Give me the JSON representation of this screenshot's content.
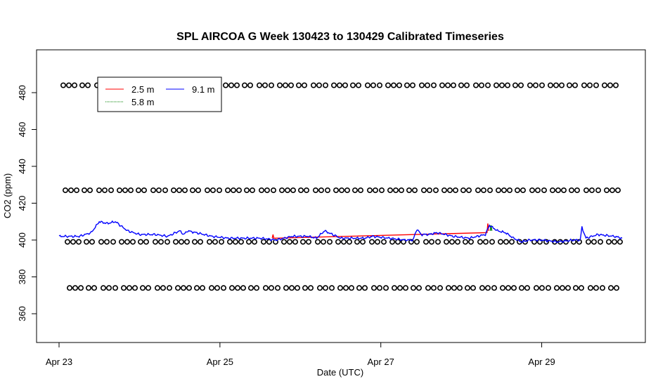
{
  "chart_data": {
    "type": "line",
    "title": "SPL AIRCOA G  Week 130423 to 130429  Calibrated Timeseries",
    "xlabel": "Date (UTC)",
    "ylabel": "CO2 (ppm)",
    "x_ticks": [
      "Apr 23",
      "Apr 25",
      "Apr 27",
      "Apr 29"
    ],
    "y_ticks": [
      "360",
      "380",
      "400",
      "420",
      "440",
      "460",
      "480"
    ],
    "x_range_days": [
      23,
      30
    ],
    "ylim": [
      370,
      488
    ],
    "legend": {
      "position": "top-left",
      "entries": [
        "2.5 m",
        "9.1 m",
        "5.8 m"
      ]
    },
    "colors": {
      "2.5 m": "#ff0000",
      "5.8 m": "#008000",
      "9.1 m": "#0000ff",
      "markers": "#000000"
    },
    "series": [
      {
        "name": "9.1 m",
        "x": [
          23.0,
          23.25,
          23.4,
          23.5,
          23.6,
          23.7,
          23.85,
          24.0,
          24.2,
          24.35,
          24.5,
          24.55,
          24.6,
          24.7,
          24.9,
          25.1,
          25.3,
          25.5,
          25.7,
          25.9,
          26.1,
          26.2,
          26.3,
          26.35,
          26.5,
          26.7,
          26.8,
          26.9,
          27.1,
          27.3,
          27.4,
          27.45,
          27.5,
          27.6,
          27.7,
          27.9,
          28.1,
          28.3,
          28.35,
          28.45,
          28.55,
          28.65,
          28.75,
          28.85,
          29.0,
          29.2,
          29.4,
          29.48,
          29.5,
          29.55,
          29.7,
          29.9,
          30.0
        ],
        "y": [
          402,
          402,
          404,
          410,
          409,
          410,
          405,
          403,
          403,
          402,
          405,
          403,
          405,
          404,
          402,
          401,
          401,
          401,
          400,
          402,
          402,
          401,
          405,
          404,
          401,
          401,
          401,
          402,
          401,
          400,
          400,
          406,
          403,
          403,
          404,
          402,
          401,
          403,
          408,
          405,
          404,
          401,
          399,
          400,
          400,
          399,
          400,
          400,
          407,
          401,
          403,
          402,
          401
        ]
      },
      {
        "name": "2.5 m",
        "x": [
          25.65,
          25.66,
          25.67,
          28.32,
          28.33,
          28.34
        ],
        "y": [
          401,
          403,
          401,
          404,
          409,
          405
        ]
      },
      {
        "name": "5.8 m",
        "x": [
          28.36,
          28.37,
          28.38
        ],
        "y": [
          405,
          408,
          405
        ]
      }
    ],
    "marker_rows_ppm": [
      484,
      427,
      399,
      374
    ]
  }
}
